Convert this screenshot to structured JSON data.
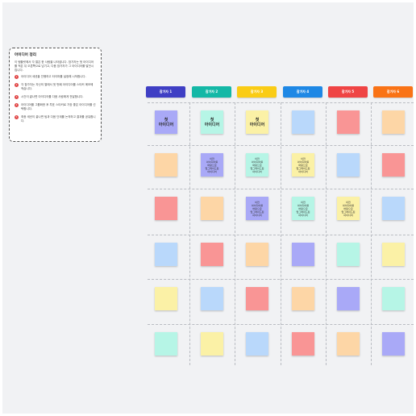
{
  "instructions": {
    "title": "아이디어 정리",
    "intro": "이 템플릿에서 각 열은 한 사람을 나타냅니다. 참가자는 첫 아이디어를 적은 뒤 오른쪽으로 넘기고, 다음 참가자가 그 아이디어를 발전시킵니다.",
    "steps": [
      {
        "num": "1",
        "text": "아이디어 세션을 진행하고 타이머를 설정해 시작합니다."
      },
      {
        "num": "2",
        "text": "각 참가자는 자신의 열에서 첫 번째 아이디어를 스티커 메모에 적습니다."
      },
      {
        "num": "3",
        "text": "시간이 끝나면 아이디어를 다음 사람에게 전달합니다."
      },
      {
        "num": "4",
        "text": "아이디어를 그룹화한 후 투표 스티커로 가장 좋은 아이디어를 선택합니다."
      },
      {
        "num": "5",
        "text": "최종 세션이 끝나면 팀과 다음 단계를 논의하고 결과를 공유합니다."
      }
    ]
  },
  "columns": [
    {
      "label": "참가자 1",
      "color": "#3f3fc4"
    },
    {
      "label": "참가자 2",
      "color": "#14b8a6"
    },
    {
      "label": "참가자 3",
      "color": "#facc15"
    },
    {
      "label": "참가자 4",
      "color": "#1e88e5"
    },
    {
      "label": "참가자 5",
      "color": "#ef4444"
    },
    {
      "label": "참가자 6",
      "color": "#f97316"
    }
  ],
  "note_colors": {
    "purple": "#a9a9f7",
    "mint": "#b6f5e6",
    "yellow": "#fbf1a6",
    "blue": "#b9d8fb",
    "red": "#f99595",
    "peach": "#fdd6a6"
  },
  "notes": {
    "first_idea": "첫\n아이디어",
    "improved_idea": "이전\n아이디어를\n바탕으로\n업그레이드된\n아이디어"
  },
  "grid": [
    [
      {
        "color": "purple",
        "text": "first_idea"
      },
      {
        "color": "mint",
        "text": "first_idea"
      },
      {
        "color": "yellow",
        "text": "first_idea"
      },
      {
        "color": "blue",
        "text": ""
      },
      {
        "color": "red",
        "text": ""
      },
      {
        "color": "peach",
        "text": ""
      }
    ],
    [
      {
        "color": "peach",
        "text": ""
      },
      {
        "color": "purple",
        "text": "improved_idea"
      },
      {
        "color": "mint",
        "text": "improved_idea"
      },
      {
        "color": "yellow",
        "text": "improved_idea"
      },
      {
        "color": "blue",
        "text": ""
      },
      {
        "color": "red",
        "text": ""
      }
    ],
    [
      {
        "color": "red",
        "text": ""
      },
      {
        "color": "peach",
        "text": ""
      },
      {
        "color": "purple",
        "text": "improved_idea"
      },
      {
        "color": "mint",
        "text": "improved_idea"
      },
      {
        "color": "yellow",
        "text": "improved_idea"
      },
      {
        "color": "blue",
        "text": ""
      }
    ],
    [
      {
        "color": "blue",
        "text": ""
      },
      {
        "color": "red",
        "text": ""
      },
      {
        "color": "peach",
        "text": ""
      },
      {
        "color": "purple",
        "text": ""
      },
      {
        "color": "mint",
        "text": ""
      },
      {
        "color": "yellow",
        "text": ""
      }
    ],
    [
      {
        "color": "yellow",
        "text": ""
      },
      {
        "color": "blue",
        "text": ""
      },
      {
        "color": "red",
        "text": ""
      },
      {
        "color": "peach",
        "text": ""
      },
      {
        "color": "purple",
        "text": ""
      },
      {
        "color": "mint",
        "text": ""
      }
    ],
    [
      {
        "color": "mint",
        "text": ""
      },
      {
        "color": "yellow",
        "text": ""
      },
      {
        "color": "blue",
        "text": ""
      },
      {
        "color": "red",
        "text": ""
      },
      {
        "color": "peach",
        "text": ""
      },
      {
        "color": "purple",
        "text": ""
      }
    ]
  ]
}
